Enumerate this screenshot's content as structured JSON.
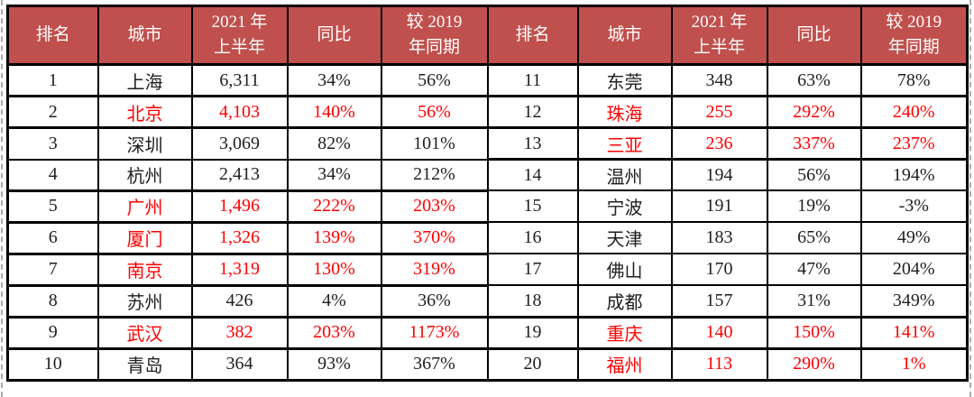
{
  "page": {
    "background": "#FFFFFF"
  },
  "table": {
    "header_bg": "#C0504D",
    "header_text_color": "#FFFFFF",
    "body_text_color": "#1F1F1F",
    "highlight_text_color": "#FF0000",
    "border_color": "#000000",
    "columns": [
      "排名",
      "城市",
      "2021 年\n上半年",
      "同比",
      "较 2019\n年同期"
    ],
    "left_rows": [
      {
        "rank": "1",
        "city": "上海",
        "value": "6,311",
        "yoy": "34%",
        "vs2019": "56%",
        "highlight": false
      },
      {
        "rank": "2",
        "city": "北京",
        "value": "4,103",
        "yoy": "140%",
        "vs2019": "56%",
        "highlight": true
      },
      {
        "rank": "3",
        "city": "深圳",
        "value": "3,069",
        "yoy": "82%",
        "vs2019": "101%",
        "highlight": false
      },
      {
        "rank": "4",
        "city": "杭州",
        "value": "2,413",
        "yoy": "34%",
        "vs2019": "212%",
        "highlight": false
      },
      {
        "rank": "5",
        "city": "广州",
        "value": "1,496",
        "yoy": "222%",
        "vs2019": "203%",
        "highlight": true
      },
      {
        "rank": "6",
        "city": "厦门",
        "value": "1,326",
        "yoy": "139%",
        "vs2019": "370%",
        "highlight": true
      },
      {
        "rank": "7",
        "city": "南京",
        "value": "1,319",
        "yoy": "130%",
        "vs2019": "319%",
        "highlight": true
      },
      {
        "rank": "8",
        "city": "苏州",
        "value": "426",
        "yoy": "4%",
        "vs2019": "36%",
        "highlight": false
      },
      {
        "rank": "9",
        "city": "武汉",
        "value": "382",
        "yoy": "203%",
        "vs2019": "1173%",
        "highlight": true
      },
      {
        "rank": "10",
        "city": "青岛",
        "value": "364",
        "yoy": "93%",
        "vs2019": "367%",
        "highlight": false
      }
    ],
    "right_rows": [
      {
        "rank": "11",
        "city": "东莞",
        "value": "348",
        "yoy": "63%",
        "vs2019": "78%",
        "highlight": false
      },
      {
        "rank": "12",
        "city": "珠海",
        "value": "255",
        "yoy": "292%",
        "vs2019": "240%",
        "highlight": true
      },
      {
        "rank": "13",
        "city": "三亚",
        "value": "236",
        "yoy": "337%",
        "vs2019": "237%",
        "highlight": true
      },
      {
        "rank": "14",
        "city": "温州",
        "value": "194",
        "yoy": "56%",
        "vs2019": "194%",
        "highlight": false
      },
      {
        "rank": "15",
        "city": "宁波",
        "value": "191",
        "yoy": "19%",
        "vs2019": "-3%",
        "highlight": false
      },
      {
        "rank": "16",
        "city": "天津",
        "value": "183",
        "yoy": "65%",
        "vs2019": "49%",
        "highlight": false
      },
      {
        "rank": "17",
        "city": "佛山",
        "value": "170",
        "yoy": "47%",
        "vs2019": "204%",
        "highlight": false
      },
      {
        "rank": "18",
        "city": "成都",
        "value": "157",
        "yoy": "31%",
        "vs2019": "349%",
        "highlight": false
      },
      {
        "rank": "19",
        "city": "重庆",
        "value": "140",
        "yoy": "150%",
        "vs2019": "141%",
        "highlight": true
      },
      {
        "rank": "20",
        "city": "福州",
        "value": "113",
        "yoy": "290%",
        "vs2019": "1%",
        "highlight": true
      }
    ]
  }
}
